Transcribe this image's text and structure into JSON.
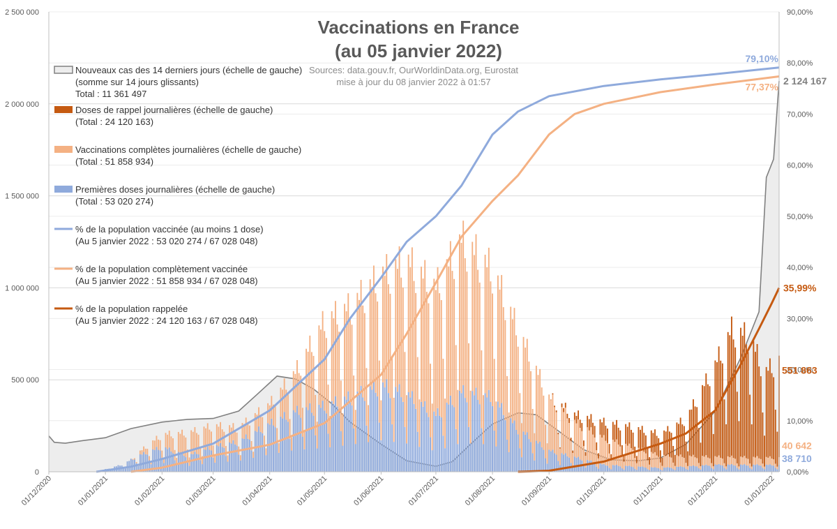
{
  "chart_data": {
    "type": "bar+line",
    "title_line1": "Vaccinations en France",
    "title_line2": "(au 05 janvier 2022)",
    "source_line1": "Sources: data.gouv.fr, OurWorldinData.org, Eurostat",
    "source_line2": "mise à jour du 08 janvier 2022 à 01:57",
    "x_axis": {
      "start": "2020-12-01",
      "end": "2022-01-05",
      "tick_labels": [
        "01/12/2020",
        "01/01/2021",
        "01/02/2021",
        "01/03/2021",
        "01/04/2021",
        "01/05/2021",
        "01/06/2021",
        "01/07/2021",
        "01/08/2021",
        "01/09/2021",
        "01/10/2021",
        "01/11/2021",
        "01/12/2021",
        "01/01/2022"
      ]
    },
    "y_left": {
      "min": 0,
      "max": 2500000,
      "tick_labels": [
        "0",
        "500 000",
        "1 000 000",
        "1 500 000",
        "2 000 000",
        "2 500 000"
      ]
    },
    "y_right": {
      "min": 0,
      "max": 90,
      "unit": "%",
      "tick_labels": [
        "0,00%",
        "10,00%",
        "20,00%",
        "30,00%",
        "40,00%",
        "50,00%",
        "60,00%",
        "70,00%",
        "80,00%",
        "90,00%"
      ]
    },
    "gridlines": true,
    "legend_position": "top-left",
    "legend": [
      {
        "key": "cases",
        "lines": [
          "Nouveaux cas des 14 derniers jours (échelle de gauche)",
          "(somme sur 14 jours glissants)",
          "Total : 11 361 497"
        ]
      },
      {
        "key": "booster_daily",
        "lines": [
          "Doses de rappel journalières (échelle de gauche)",
          "(Total : 24 120 163)"
        ]
      },
      {
        "key": "complete_daily",
        "lines": [
          "Vaccinations complètes journalières (échelle de gauche)",
          "(Total : 51 858 934)"
        ]
      },
      {
        "key": "first_daily",
        "lines": [
          "Premières doses journalières (échelle de gauche)",
          "(Total : 53 020 274)"
        ]
      },
      {
        "key": "pct_first",
        "lines": [
          "% de la population vaccinée (au moins 1 dose)",
          "(Au 5 janvier 2022 : 53 020 274 / 67 028 048)"
        ]
      },
      {
        "key": "pct_complete",
        "lines": [
          "% de la population complètement vaccinée",
          "(Au 5 janvier 2022 : 51 858 934 / 67 028 048)"
        ]
      },
      {
        "key": "pct_booster",
        "lines": [
          "% de la population rappelée",
          "(Au 5 janvier 2022 : 24 120 163 / 67 028 048)"
        ]
      }
    ],
    "colors": {
      "cases": "#808080",
      "cases_fill": "#ededed",
      "booster": "#c55a11",
      "complete": "#f4b183",
      "first": "#8faadc",
      "pct_first": "#8faadc",
      "pct_complete": "#f4b183",
      "pct_booster": "#c55a11"
    },
    "end_labels": {
      "pct_first": "79,10%",
      "pct_complete": "77,37%",
      "pct_booster": "35,99%",
      "cases": "2 124 167",
      "booster_daily": "551 863",
      "complete_daily": "40 642",
      "first_daily": "38 710"
    },
    "series": {
      "cases_14d": [
        [
          "2020-12-01",
          195000
        ],
        [
          "2020-12-04",
          160000
        ],
        [
          "2020-12-10",
          155000
        ],
        [
          "2020-12-20",
          170000
        ],
        [
          "2021-01-01",
          185000
        ],
        [
          "2021-01-15",
          235000
        ],
        [
          "2021-02-01",
          270000
        ],
        [
          "2021-02-15",
          285000
        ],
        [
          "2021-03-01",
          290000
        ],
        [
          "2021-03-15",
          330000
        ],
        [
          "2021-03-25",
          420000
        ],
        [
          "2021-04-05",
          520000
        ],
        [
          "2021-04-15",
          505000
        ],
        [
          "2021-04-25",
          450000
        ],
        [
          "2021-05-05",
          370000
        ],
        [
          "2021-05-15",
          270000
        ],
        [
          "2021-06-01",
          150000
        ],
        [
          "2021-06-15",
          60000
        ],
        [
          "2021-07-01",
          30000
        ],
        [
          "2021-07-10",
          55000
        ],
        [
          "2021-07-20",
          150000
        ],
        [
          "2021-08-01",
          260000
        ],
        [
          "2021-08-15",
          320000
        ],
        [
          "2021-08-25",
          310000
        ],
        [
          "2021-09-05",
          230000
        ],
        [
          "2021-09-20",
          120000
        ],
        [
          "2021-10-05",
          65000
        ],
        [
          "2021-10-20",
          60000
        ],
        [
          "2021-11-01",
          75000
        ],
        [
          "2021-11-15",
          150000
        ],
        [
          "2021-12-01",
          330000
        ],
        [
          "2021-12-15",
          620000
        ],
        [
          "2021-12-25",
          870000
        ],
        [
          "2021-12-29",
          1600000
        ],
        [
          "2022-01-02",
          1700000
        ],
        [
          "2022-01-05",
          2124167
        ]
      ],
      "pct_first": [
        [
          "2020-12-27",
          0
        ],
        [
          "2021-01-15",
          1.0
        ],
        [
          "2021-02-01",
          2.5
        ],
        [
          "2021-03-01",
          5.5
        ],
        [
          "2021-04-01",
          12
        ],
        [
          "2021-05-01",
          22
        ],
        [
          "2021-05-15",
          30
        ],
        [
          "2021-06-01",
          38
        ],
        [
          "2021-06-15",
          45
        ],
        [
          "2021-07-01",
          50
        ],
        [
          "2021-07-15",
          56
        ],
        [
          "2021-08-01",
          66
        ],
        [
          "2021-08-15",
          70.5
        ],
        [
          "2021-09-01",
          73.5
        ],
        [
          "2021-10-01",
          75.5
        ],
        [
          "2021-11-01",
          76.8
        ],
        [
          "2021-12-01",
          77.8
        ],
        [
          "2022-01-05",
          79.1
        ]
      ],
      "pct_complete": [
        [
          "2021-01-15",
          0
        ],
        [
          "2021-02-01",
          0.8
        ],
        [
          "2021-03-01",
          3.2
        ],
        [
          "2021-04-01",
          5.3
        ],
        [
          "2021-05-01",
          9.5
        ],
        [
          "2021-06-01",
          19
        ],
        [
          "2021-06-15",
          27
        ],
        [
          "2021-07-01",
          37
        ],
        [
          "2021-07-15",
          46
        ],
        [
          "2021-08-01",
          53
        ],
        [
          "2021-08-15",
          58
        ],
        [
          "2021-09-01",
          66
        ],
        [
          "2021-09-15",
          70
        ],
        [
          "2021-10-01",
          72
        ],
        [
          "2021-11-01",
          74.3
        ],
        [
          "2021-12-01",
          75.8
        ],
        [
          "2022-01-05",
          77.37
        ]
      ],
      "pct_booster": [
        [
          "2021-08-15",
          0
        ],
        [
          "2021-09-01",
          0.2
        ],
        [
          "2021-10-01",
          2.0
        ],
        [
          "2021-11-01",
          5.5
        ],
        [
          "2021-11-15",
          7.5
        ],
        [
          "2021-12-01",
          12
        ],
        [
          "2021-12-15",
          21
        ],
        [
          "2021-12-25",
          28
        ],
        [
          "2022-01-01",
          33
        ],
        [
          "2022-01-05",
          35.99
        ]
      ],
      "first_daily_env": [
        [
          "2020-12-27",
          0
        ],
        [
          "2021-01-10",
          40000
        ],
        [
          "2021-01-20",
          95000
        ],
        [
          "2021-02-01",
          140000
        ],
        [
          "2021-02-15",
          90000
        ],
        [
          "2021-03-01",
          140000
        ],
        [
          "2021-03-15",
          170000
        ],
        [
          "2021-04-01",
          270000
        ],
        [
          "2021-04-15",
          340000
        ],
        [
          "2021-05-01",
          370000
        ],
        [
          "2021-05-15",
          420000
        ],
        [
          "2021-06-01",
          490000
        ],
        [
          "2021-06-15",
          440000
        ],
        [
          "2021-07-01",
          320000
        ],
        [
          "2021-07-15",
          450000
        ],
        [
          "2021-08-01",
          420000
        ],
        [
          "2021-08-15",
          240000
        ],
        [
          "2021-09-01",
          120000
        ],
        [
          "2021-10-01",
          40000
        ],
        [
          "2021-11-01",
          22000
        ],
        [
          "2021-12-01",
          40000
        ],
        [
          "2022-01-05",
          38710
        ]
      ],
      "complete_daily_env": [
        [
          "2021-01-15",
          0
        ],
        [
          "2021-02-01",
          70000
        ],
        [
          "2021-02-15",
          130000
        ],
        [
          "2021-03-01",
          120000
        ],
        [
          "2021-03-15",
          80000
        ],
        [
          "2021-04-01",
          110000
        ],
        [
          "2021-04-15",
          220000
        ],
        [
          "2021-05-01",
          480000
        ],
        [
          "2021-05-15",
          510000
        ],
        [
          "2021-06-01",
          620000
        ],
        [
          "2021-06-15",
          750000
        ],
        [
          "2021-07-01",
          720000
        ],
        [
          "2021-07-15",
          860000
        ],
        [
          "2021-08-01",
          720000
        ],
        [
          "2021-08-15",
          560000
        ],
        [
          "2021-09-01",
          300000
        ],
        [
          "2021-09-15",
          200000
        ],
        [
          "2021-10-01",
          150000
        ],
        [
          "2021-11-01",
          70000
        ],
        [
          "2021-12-01",
          45000
        ],
        [
          "2022-01-05",
          40642
        ]
      ],
      "booster_daily_env": [
        [
          "2021-09-01",
          0
        ],
        [
          "2021-09-15",
          40000
        ],
        [
          "2021-10-01",
          90000
        ],
        [
          "2021-10-15",
          110000
        ],
        [
          "2021-11-01",
          120000
        ],
        [
          "2021-11-15",
          210000
        ],
        [
          "2021-12-01",
          520000
        ],
        [
          "2021-12-10",
          720000
        ],
        [
          "2021-12-20",
          680000
        ],
        [
          "2021-12-28",
          480000
        ],
        [
          "2022-01-05",
          551863
        ]
      ]
    }
  }
}
